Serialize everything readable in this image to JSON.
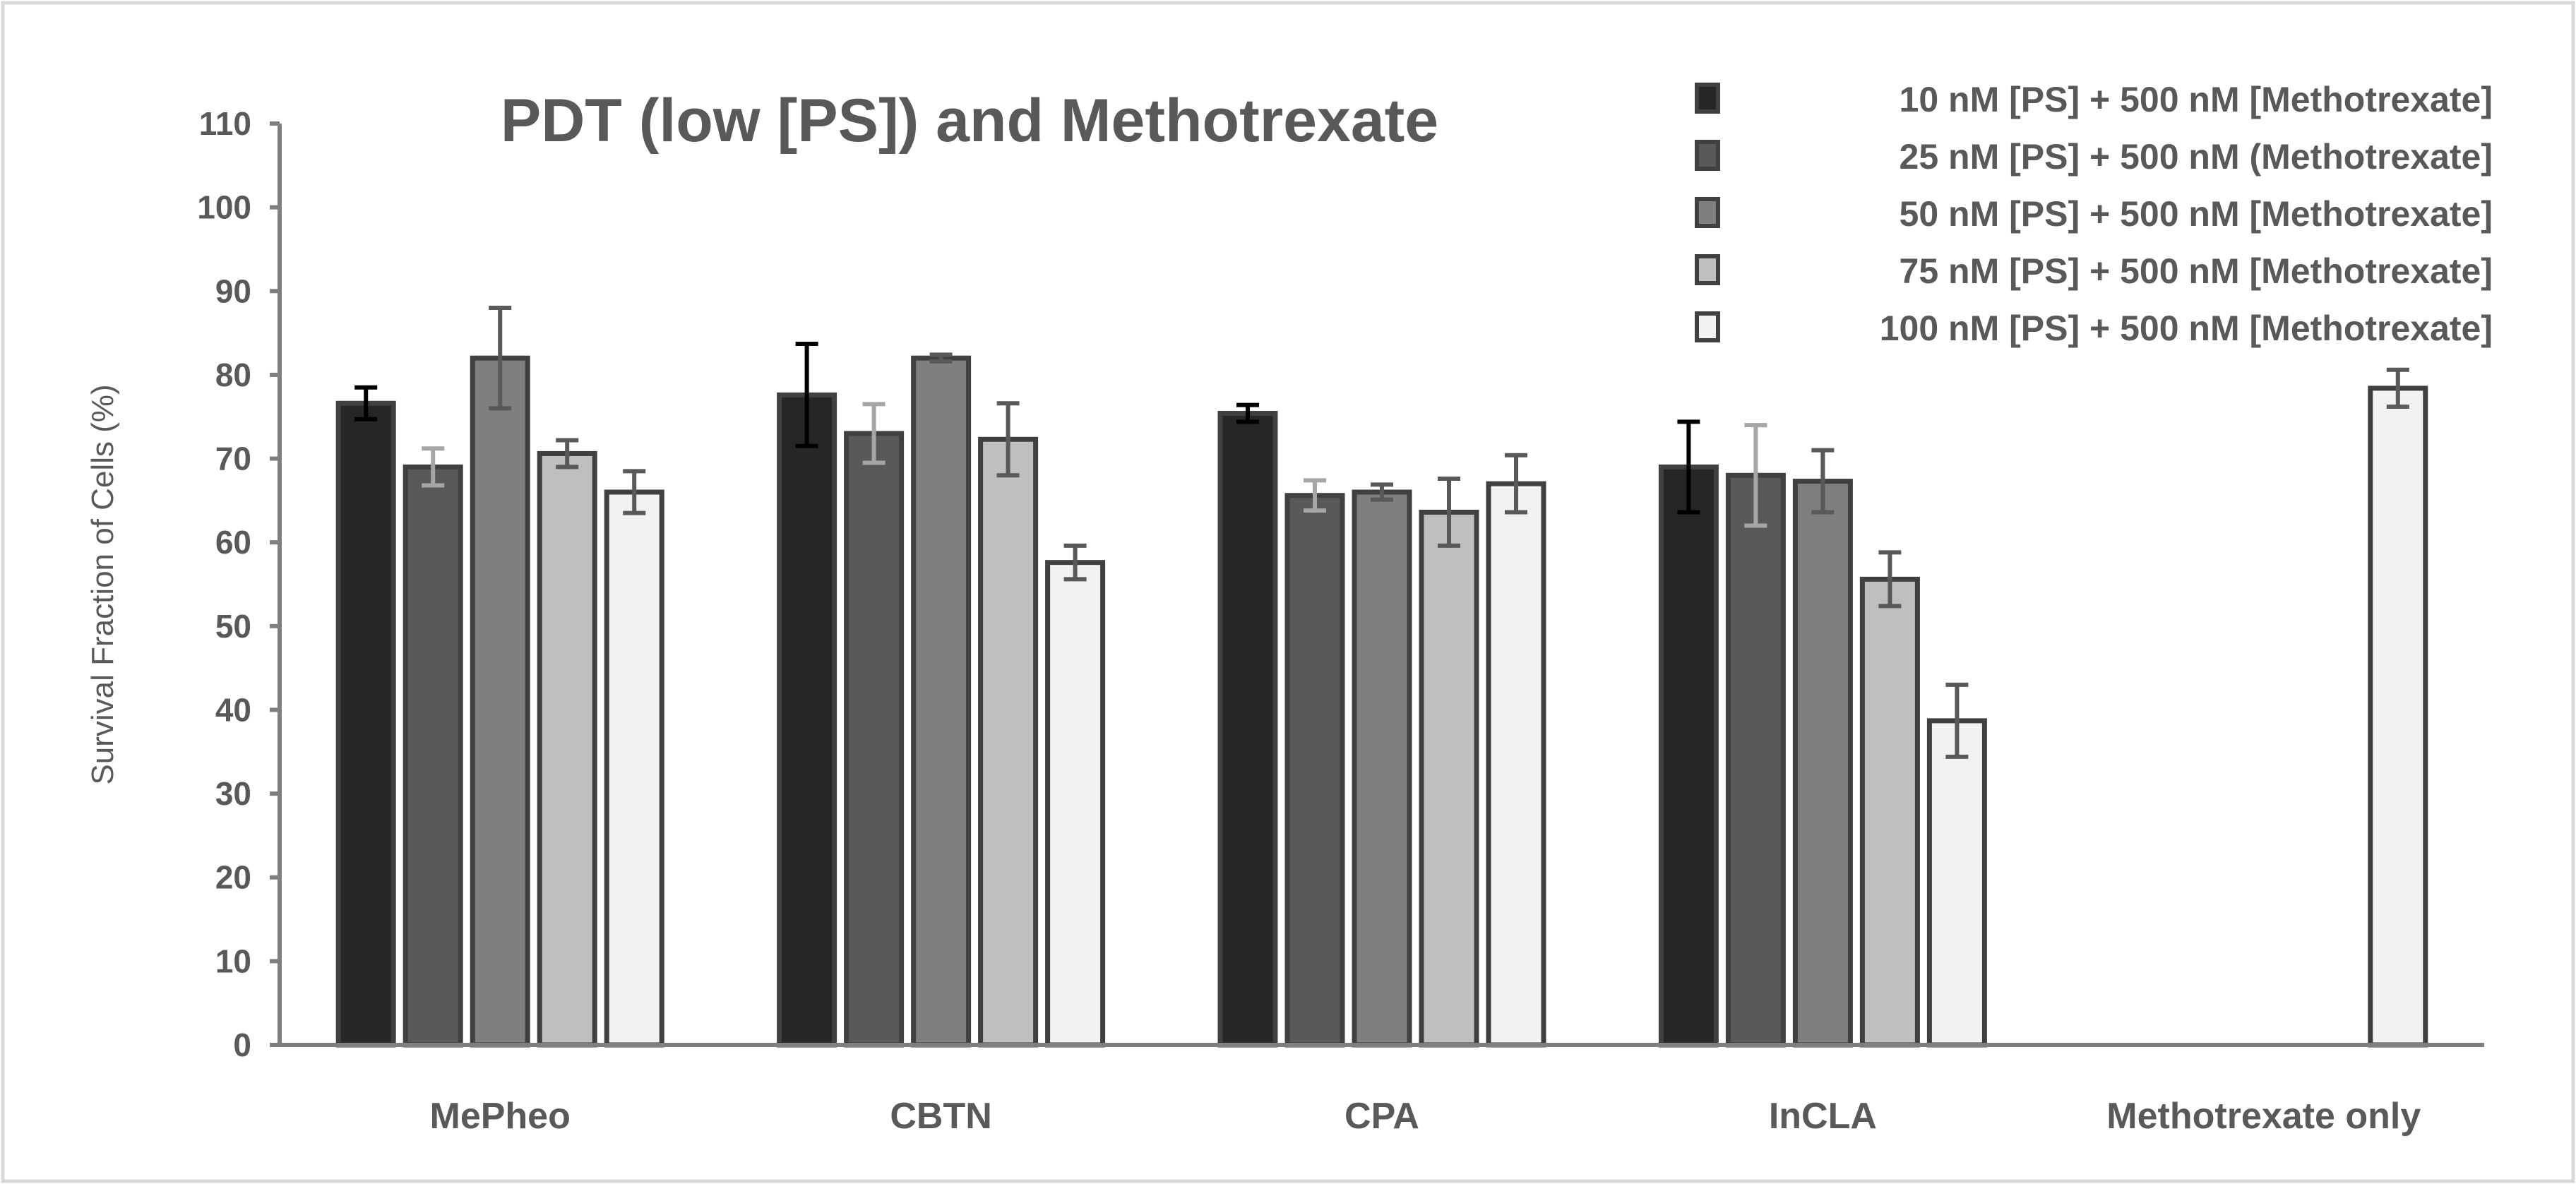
{
  "chart_data": {
    "type": "bar",
    "title": "PDT (low [PS]) and Methotrexate",
    "xlabel": "",
    "ylabel": "Survival Fraction of Cells (%)",
    "ylim": [
      0,
      110
    ],
    "yticks": [
      "0",
      "10",
      "20",
      "30",
      "40",
      "50",
      "60",
      "70",
      "80",
      "90",
      "100",
      "110"
    ],
    "grid": false,
    "legend_position": "top-right",
    "categories": [
      "MePheo",
      "CBTN",
      "CPA",
      "InCLA",
      "Methotrexate only"
    ],
    "series": [
      {
        "name": "10 nM [PS] + 500 nM [Methotrexate]",
        "color": "#262626",
        "edge": "#404040",
        "err_color": "#000000",
        "values": [
          76.6,
          77.6,
          75.4,
          69.0,
          null
        ],
        "errors": [
          1.9,
          6.1,
          1.0,
          5.4,
          null
        ]
      },
      {
        "name": "25 nM [PS] + 500 nM (Methotrexate]",
        "color": "#595959",
        "edge": "#404040",
        "err_color": "#a6a6a6",
        "values": [
          69.0,
          73.0,
          65.6,
          68.0,
          null
        ],
        "errors": [
          2.2,
          3.5,
          1.8,
          6.0,
          null
        ]
      },
      {
        "name": "50 nM [PS] + 500 nM [Methotrexate]",
        "color": "#7f7f7f",
        "edge": "#404040",
        "err_color": "#595959",
        "values": [
          82.0,
          82.0,
          66.0,
          67.3,
          null
        ],
        "errors": [
          6.0,
          0.4,
          0.9,
          3.7,
          null
        ]
      },
      {
        "name": "75 nM [PS] + 500 nM [Methotrexate]",
        "color": "#bfbfbf",
        "edge": "#404040",
        "err_color": "#595959",
        "values": [
          70.6,
          72.3,
          63.6,
          55.6,
          null
        ],
        "errors": [
          1.6,
          4.3,
          4.0,
          3.2,
          null
        ]
      },
      {
        "name": "100 nM [PS] + 500 nM [Methotrexate]",
        "color": "#f2f2f2",
        "edge": "#404040",
        "err_color": "#595959",
        "values": [
          66.0,
          57.6,
          67.0,
          38.7,
          78.4
        ],
        "errors": [
          2.5,
          2.0,
          3.4,
          4.3,
          2.2
        ]
      }
    ]
  }
}
